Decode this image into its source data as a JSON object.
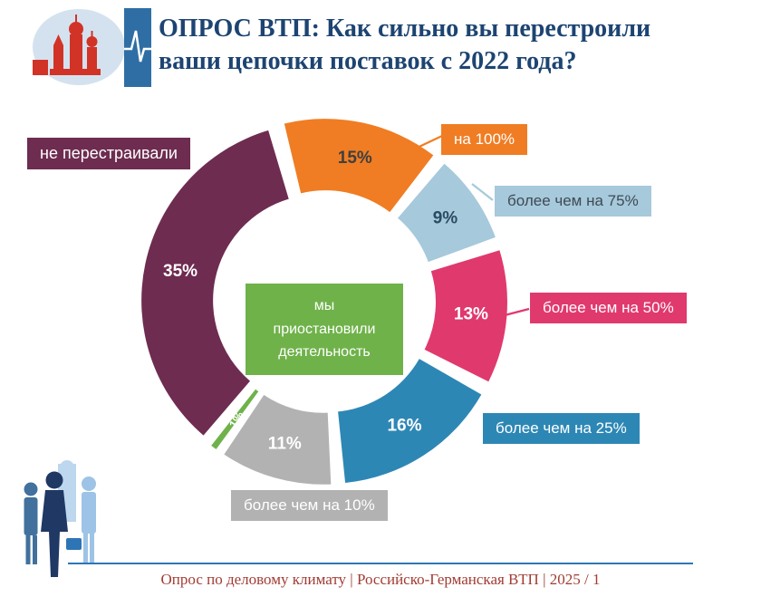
{
  "header": {
    "title_line1": "ОПРОС ВТП: Как сильно вы перестроили",
    "title_line2": "ваши цепочки поставок с 2022 года?"
  },
  "colors": {
    "title": "#1d4472",
    "footer_text": "#a23c33",
    "footer_line": "#2e75b6"
  },
  "center_label": {
    "text": "мы\nприостановили\nдеятельность"
  },
  "footer": {
    "text": "Опрос по деловому климату | Российско-Германская ВТП |  2025 / 1"
  },
  "chart_data": {
    "type": "pie",
    "donut": true,
    "title": "ОПРОС ВТП: Как сильно вы перестроили ваши цепочки поставок с 2022 года?",
    "order": "clockwise",
    "start_angle_deg": -15,
    "inner_radius_ratio": 0.6,
    "segments": [
      {
        "label": "на 100%",
        "value": 15,
        "pct_label": "15%",
        "color": "#f07d23",
        "pct_color": "#3f3f3f"
      },
      {
        "label": "более чем на 75%",
        "value": 9,
        "pct_label": "9%",
        "color": "#a6c9db",
        "pct_color": "#2b4a63"
      },
      {
        "label": "более чем на 50%",
        "value": 13,
        "pct_label": "13%",
        "color": "#e0396e",
        "pct_color": "#ffffff"
      },
      {
        "label": "более чем на 25%",
        "value": 16,
        "pct_label": "16%",
        "color": "#2d87b5",
        "pct_color": "#ffffff"
      },
      {
        "label": "более чем на 10%",
        "value": 11,
        "pct_label": "11%",
        "color": "#b2b2b2",
        "pct_color": "#ffffff"
      },
      {
        "label": "мы приостановили деятельность",
        "value": 1,
        "pct_label": "1%",
        "color": "#6fb24a",
        "pct_color": "#ffffff"
      },
      {
        "label": "не перестраивали",
        "value": 35,
        "pct_label": "35%",
        "color": "#6e2c50",
        "pct_color": "#ffffff"
      }
    ]
  }
}
